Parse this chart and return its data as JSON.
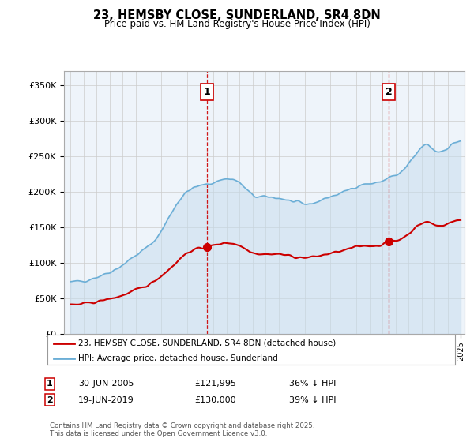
{
  "title": "23, HEMSBY CLOSE, SUNDERLAND, SR4 8DN",
  "subtitle": "Price paid vs. HM Land Registry's House Price Index (HPI)",
  "hpi_color": "#6baed6",
  "hpi_fill": "#c6dcee",
  "price_color": "#cc0000",
  "vline_color": "#cc0000",
  "grid_color": "#cccccc",
  "bg_color": "#ffffff",
  "plot_bg": "#eef4fa",
  "ylim": [
    0,
    370000
  ],
  "yticks": [
    0,
    50000,
    100000,
    150000,
    200000,
    250000,
    300000,
    350000
  ],
  "ytick_labels": [
    "£0",
    "£50K",
    "£100K",
    "£150K",
    "£200K",
    "£250K",
    "£300K",
    "£350K"
  ],
  "xlim_start": 1994.5,
  "xlim_end": 2025.3,
  "sale1_x": 2005.5,
  "sale1_y": 121995,
  "sale1_label": "1",
  "sale2_x": 2019.47,
  "sale2_y": 130000,
  "sale2_label": "2",
  "legend_line1": "23, HEMSBY CLOSE, SUNDERLAND, SR4 8DN (detached house)",
  "legend_line2": "HPI: Average price, detached house, Sunderland",
  "sale1_date": "30-JUN-2005",
  "sale1_price": "£121,995",
  "sale1_note": "36% ↓ HPI",
  "sale2_date": "19-JUN-2019",
  "sale2_price": "£130,000",
  "sale2_note": "39% ↓ HPI",
  "footer": "Contains HM Land Registry data © Crown copyright and database right 2025.\nThis data is licensed under the Open Government Licence v3.0."
}
